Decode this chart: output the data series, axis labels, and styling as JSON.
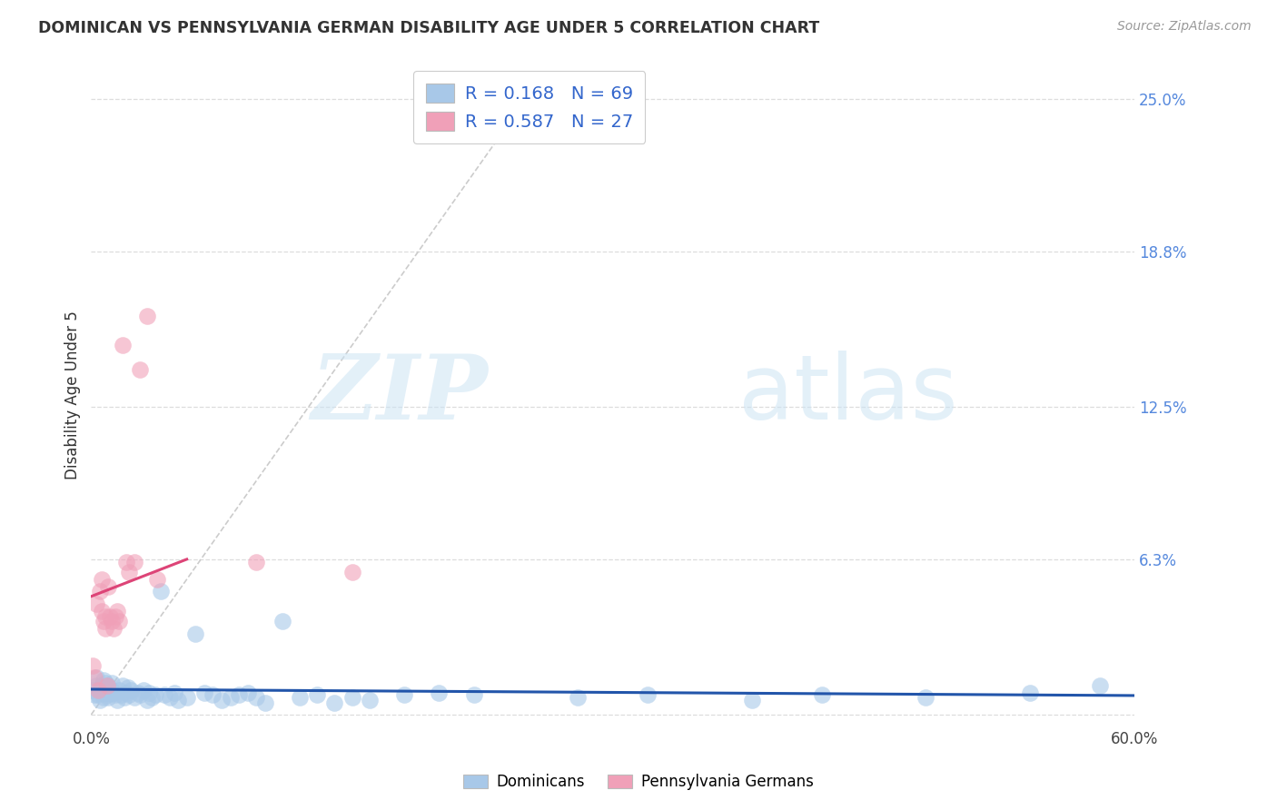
{
  "title": "DOMINICAN VS PENNSYLVANIA GERMAN DISABILITY AGE UNDER 5 CORRELATION CHART",
  "source": "Source: ZipAtlas.com",
  "ylabel": "Disability Age Under 5",
  "xlim": [
    0.0,
    0.6
  ],
  "ylim": [
    -0.005,
    0.265
  ],
  "yticks": [
    0.0,
    0.063,
    0.125,
    0.188,
    0.25
  ],
  "ytick_labels": [
    "",
    "6.3%",
    "12.5%",
    "18.8%",
    "25.0%"
  ],
  "xticks": [
    0.0,
    0.1,
    0.2,
    0.3,
    0.4,
    0.5,
    0.6
  ],
  "xtick_labels": [
    "0.0%",
    "",
    "",
    "",
    "",
    "",
    "60.0%"
  ],
  "dominicans_color": "#a8c8e8",
  "penn_german_color": "#f0a0b8",
  "dominicans_line_color": "#2255aa",
  "penn_german_line_color": "#dd4477",
  "diagonal_color": "#cccccc",
  "R_dominicans": 0.168,
  "N_dominicans": 69,
  "R_penn_german": 0.587,
  "N_penn_german": 27,
  "watermark_zip": "ZIP",
  "watermark_atlas": "atlas",
  "dom_x": [
    0.001,
    0.002,
    0.003,
    0.003,
    0.004,
    0.005,
    0.005,
    0.006,
    0.007,
    0.007,
    0.008,
    0.008,
    0.009,
    0.009,
    0.01,
    0.01,
    0.011,
    0.012,
    0.012,
    0.013,
    0.014,
    0.015,
    0.016,
    0.017,
    0.018,
    0.019,
    0.02,
    0.021,
    0.022,
    0.023,
    0.025,
    0.027,
    0.028,
    0.03,
    0.032,
    0.033,
    0.035,
    0.037,
    0.04,
    0.042,
    0.045,
    0.048,
    0.05,
    0.055,
    0.06,
    0.065,
    0.07,
    0.075,
    0.08,
    0.085,
    0.09,
    0.095,
    0.1,
    0.11,
    0.12,
    0.13,
    0.14,
    0.15,
    0.16,
    0.18,
    0.2,
    0.22,
    0.28,
    0.32,
    0.38,
    0.42,
    0.48,
    0.54,
    0.58
  ],
  "dom_y": [
    0.01,
    0.008,
    0.012,
    0.015,
    0.008,
    0.01,
    0.006,
    0.012,
    0.007,
    0.014,
    0.009,
    0.013,
    0.008,
    0.011,
    0.012,
    0.007,
    0.009,
    0.01,
    0.013,
    0.009,
    0.008,
    0.006,
    0.01,
    0.008,
    0.012,
    0.007,
    0.009,
    0.011,
    0.008,
    0.01,
    0.007,
    0.009,
    0.008,
    0.01,
    0.006,
    0.009,
    0.007,
    0.008,
    0.05,
    0.008,
    0.007,
    0.009,
    0.006,
    0.007,
    0.033,
    0.009,
    0.008,
    0.006,
    0.007,
    0.008,
    0.009,
    0.007,
    0.005,
    0.038,
    0.007,
    0.008,
    0.005,
    0.007,
    0.006,
    0.008,
    0.009,
    0.008,
    0.007,
    0.008,
    0.006,
    0.008,
    0.007,
    0.009,
    0.012
  ],
  "pg_x": [
    0.001,
    0.002,
    0.003,
    0.004,
    0.005,
    0.006,
    0.006,
    0.007,
    0.008,
    0.008,
    0.009,
    0.01,
    0.011,
    0.012,
    0.013,
    0.014,
    0.015,
    0.016,
    0.018,
    0.02,
    0.022,
    0.025,
    0.028,
    0.032,
    0.038,
    0.095,
    0.15
  ],
  "pg_y": [
    0.02,
    0.015,
    0.045,
    0.01,
    0.05,
    0.042,
    0.055,
    0.038,
    0.035,
    0.04,
    0.012,
    0.052,
    0.04,
    0.038,
    0.035,
    0.04,
    0.042,
    0.038,
    0.15,
    0.062,
    0.058,
    0.062,
    0.14,
    0.162,
    0.055,
    0.062,
    0.058
  ]
}
